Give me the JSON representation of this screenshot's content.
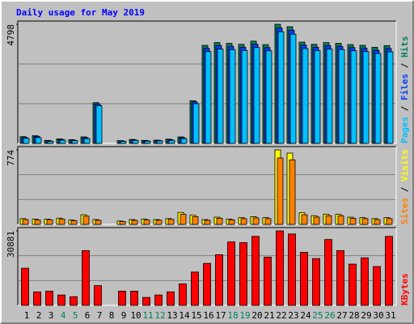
{
  "chart_data": [
    {
      "type": "bar",
      "title": "Daily usage for May 2019",
      "ylim": [
        0,
        4798
      ],
      "yticks": [
        4798
      ],
      "grid": true,
      "series": [
        {
          "name": "Hits",
          "color": "#00805c",
          "values": [
            270,
            310,
            120,
            180,
            150,
            260,
            1640,
            0,
            110,
            160,
            120,
            130,
            170,
            260,
            1720,
            3950,
            4060,
            4030,
            3990,
            4120,
            3980,
            4798,
            4700,
            4080,
            3990,
            4060,
            4030,
            3980,
            3950,
            3870,
            3940
          ]
        },
        {
          "name": "Files",
          "color": "#0040ff",
          "values": [
            240,
            280,
            100,
            160,
            130,
            230,
            1590,
            0,
            100,
            140,
            110,
            120,
            150,
            230,
            1670,
            3830,
            3940,
            3910,
            3870,
            4000,
            3860,
            4650,
            4560,
            3960,
            3870,
            3940,
            3910,
            3860,
            3830,
            3750,
            3820
          ]
        },
        {
          "name": "Pages",
          "color": "#00c0ff",
          "values": [
            200,
            230,
            80,
            130,
            110,
            190,
            1520,
            0,
            80,
            120,
            90,
            100,
            120,
            190,
            1600,
            3700,
            3800,
            3780,
            3740,
            3860,
            3730,
            4500,
            4400,
            3820,
            3740,
            3800,
            3780,
            3730,
            3700,
            3620,
            3690
          ]
        }
      ]
    },
    {
      "type": "bar",
      "ylim": [
        0,
        774
      ],
      "yticks": [
        774
      ],
      "grid": true,
      "series": [
        {
          "name": "Visits",
          "color": "#ffff00",
          "values": [
            60,
            55,
            55,
            65,
            45,
            100,
            50,
            0,
            35,
            50,
            55,
            50,
            60,
            124,
            95,
            50,
            75,
            55,
            70,
            80,
            70,
            774,
            740,
            120,
            90,
            105,
            105,
            75,
            70,
            60,
            70
          ]
        },
        {
          "name": "Sites",
          "color": "#ff8000",
          "values": [
            50,
            45,
            48,
            55,
            38,
            85,
            42,
            0,
            30,
            42,
            45,
            43,
            52,
            105,
            80,
            42,
            64,
            47,
            60,
            68,
            60,
            690,
            670,
            100,
            76,
            90,
            90,
            64,
            60,
            50,
            60
          ]
        }
      ]
    },
    {
      "type": "bar",
      "ylim": [
        0,
        30881
      ],
      "yticks": [
        30881
      ],
      "grid": true,
      "categories": [
        "1",
        "2",
        "3",
        "4",
        "5",
        "6",
        "7",
        "8",
        "9",
        "10",
        "11",
        "12",
        "13",
        "14",
        "15",
        "16",
        "17",
        "18",
        "19",
        "20",
        "21",
        "22",
        "23",
        "24",
        "25",
        "26",
        "27",
        "28",
        "29",
        "30",
        "31"
      ],
      "category_colors": [
        "#000000",
        "#000000",
        "#000000",
        "#00805c",
        "#00805c",
        "#000000",
        "#000000",
        "#000000",
        "#000000",
        "#000000",
        "#00805c",
        "#00805c",
        "#000000",
        "#000000",
        "#000000",
        "#000000",
        "#000000",
        "#00805c",
        "#00805c",
        "#000000",
        "#000000",
        "#000000",
        "#000000",
        "#000000",
        "#00805c",
        "#00805c",
        "#000000",
        "#000000",
        "#000000",
        "#000000",
        "#000000"
      ],
      "series": [
        {
          "name": "KBytes",
          "color": "#ff0000",
          "values": [
            15400,
            5600,
            5900,
            4300,
            3600,
            22700,
            8200,
            0,
            5900,
            5900,
            3300,
            4300,
            5600,
            8900,
            13800,
            17400,
            21000,
            26300,
            26000,
            28600,
            20000,
            30881,
            29600,
            22000,
            19400,
            27300,
            22700,
            17100,
            19700,
            16100,
            28600
          ]
        }
      ]
    }
  ]
}
